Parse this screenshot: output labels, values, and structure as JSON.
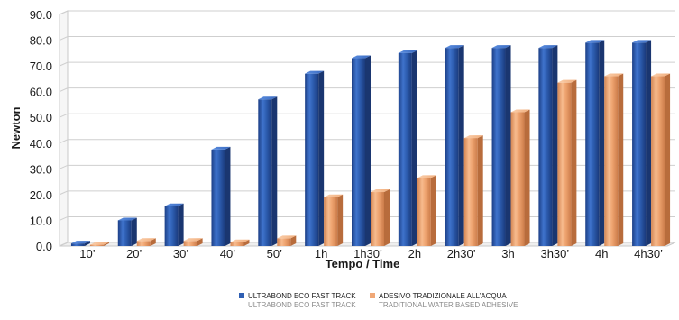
{
  "chart_data": {
    "type": "bar",
    "xlabel": "Tempo / Time",
    "ylabel": "Newton",
    "ylim": [
      0,
      90
    ],
    "y_ticks": [
      "0.0",
      "10.0",
      "20.0",
      "30.0",
      "40.0",
      "50.0",
      "60.0",
      "70.0",
      "80.0",
      "90.0"
    ],
    "categories": [
      "10’",
      "20’",
      "30’",
      "40’",
      "50’",
      "1h",
      "1h30’",
      "2h",
      "2h30’",
      "3h",
      "3h30’",
      "4h",
      "4h30’"
    ],
    "grid": true,
    "legend_position": "bottom-center",
    "series": [
      {
        "name": "ULTRABOND ECO FAST TRACK",
        "subname": "ULTRABOND ECO FAST TRACK",
        "color": "#2f5fb3",
        "values": [
          1.0,
          10.0,
          15.5,
          37.5,
          57.0,
          67.0,
          73.0,
          75.0,
          77.0,
          77.0,
          77.0,
          79.0,
          79.0
        ]
      },
      {
        "name": "ADESIVO TRADIZIONALE ALL’ACQUA",
        "subname": "TRADITIONAL WATER BASED ADHESIVE",
        "color": "#f0a877",
        "values": [
          0.5,
          2.0,
          2.0,
          1.5,
          3.0,
          19.0,
          21.0,
          26.5,
          42.0,
          52.0,
          63.5,
          66.0,
          66.0
        ]
      }
    ]
  }
}
